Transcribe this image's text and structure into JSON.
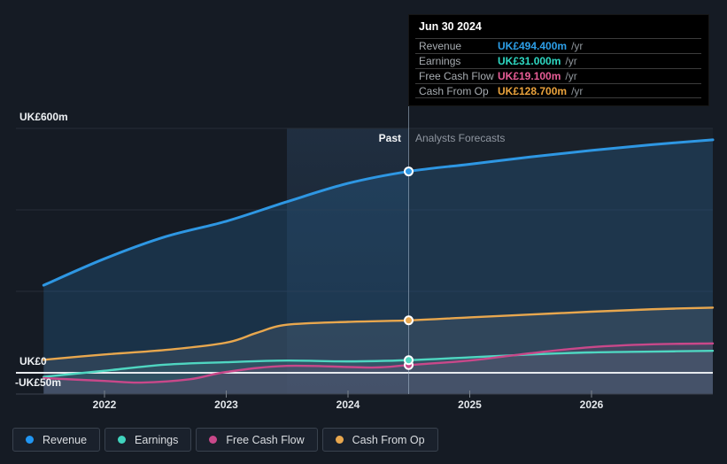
{
  "tooltip": {
    "date": "Jun 30 2024",
    "rows": [
      {
        "label": "Revenue",
        "value": "UK£494.400m",
        "unit": "/yr",
        "color": "#2d9fe8"
      },
      {
        "label": "Earnings",
        "value": "UK£31.000m",
        "unit": "/yr",
        "color": "#2ed9c3"
      },
      {
        "label": "Free Cash Flow",
        "value": "UK£19.100m",
        "unit": "/yr",
        "color": "#e85d97"
      },
      {
        "label": "Cash From Op",
        "value": "UK£128.700m",
        "unit": "/yr",
        "color": "#eba33c"
      }
    ]
  },
  "phases": {
    "past": "Past",
    "forecast": "Analysts Forecasts"
  },
  "axis": {
    "y_labels": [
      "UK£600m",
      "UK£0",
      "-UK£50m"
    ],
    "x_ticks": [
      "2022",
      "2023",
      "2024",
      "2025",
      "2026"
    ]
  },
  "legend": {
    "items": [
      {
        "label": "Revenue",
        "color": "#2196f3"
      },
      {
        "label": "Earnings",
        "color": "#40d4be"
      },
      {
        "label": "Free Cash Flow",
        "color": "#c9488a"
      },
      {
        "label": "Cash From Op",
        "color": "#e8a74e"
      }
    ]
  },
  "chart_data": {
    "type": "line",
    "title": "Past and forecast Revenue, Earnings, Free Cash Flow and Cash From Op",
    "unit": "UK£ millions per year",
    "x": "calendar year",
    "x_ticks": [
      2022,
      2023,
      2024,
      2025,
      2026
    ],
    "x_range": [
      2021.5,
      2027
    ],
    "ylim_m": [
      -50,
      600
    ],
    "y_gridlines_m": [
      600,
      400,
      200,
      0
    ],
    "grid": true,
    "legend_position": "bottom-left",
    "divider": {
      "year": 2024.5,
      "past_label": "Past",
      "forecast_label": "Analysts Forecasts"
    },
    "highlight_band": {
      "from_year": 2023.5,
      "to_year": 2024.5
    },
    "marker": {
      "date": "Jun 30 2024",
      "year": 2024.5,
      "values_m": {
        "Revenue": 494.4,
        "Earnings": 31.0,
        "Free Cash Flow": 19.1,
        "Cash From Op": 128.7
      }
    },
    "series": [
      {
        "name": "Revenue",
        "color": "#2e97e3",
        "fill": "rgba(44,118,180,0.25)",
        "line_width": 3,
        "points": [
          [
            2021.5,
            215
          ],
          [
            2022,
            280
          ],
          [
            2022.5,
            334
          ],
          [
            2023,
            372
          ],
          [
            2023.5,
            420
          ],
          [
            2024,
            465
          ],
          [
            2024.5,
            494.4
          ],
          [
            2025,
            512
          ],
          [
            2025.5,
            530
          ],
          [
            2026,
            546
          ],
          [
            2026.5,
            560
          ],
          [
            2027,
            572
          ]
        ]
      },
      {
        "name": "Earnings",
        "color": "#4fd6c1",
        "fill": "rgba(79,214,193,0.10)",
        "line_width": 2.4,
        "points": [
          [
            2021.5,
            -10
          ],
          [
            2022,
            5
          ],
          [
            2022.5,
            20
          ],
          [
            2023,
            26
          ],
          [
            2023.5,
            30
          ],
          [
            2024,
            28
          ],
          [
            2024.5,
            31
          ],
          [
            2025,
            38
          ],
          [
            2025.5,
            45
          ],
          [
            2026,
            50
          ],
          [
            2026.5,
            52
          ],
          [
            2027,
            54
          ]
        ]
      },
      {
        "name": "Free Cash Flow",
        "color": "#c9488a",
        "fill": "rgba(205,75,140,0.12)",
        "line_width": 2.4,
        "points": [
          [
            2021.5,
            -13
          ],
          [
            2022,
            -20
          ],
          [
            2022.3,
            -24
          ],
          [
            2022.7,
            -16
          ],
          [
            2023,
            2
          ],
          [
            2023.5,
            17
          ],
          [
            2024.2,
            13
          ],
          [
            2024.5,
            19.1
          ],
          [
            2025,
            30
          ],
          [
            2025.5,
            48
          ],
          [
            2026,
            63
          ],
          [
            2026.5,
            70
          ],
          [
            2027,
            72
          ]
        ]
      },
      {
        "name": "Cash From Op",
        "color": "#e8a74e",
        "fill": "rgba(215,220,225,0.10)",
        "line_width": 2.4,
        "points": [
          [
            2021.5,
            32
          ],
          [
            2022,
            45
          ],
          [
            2022.5,
            56
          ],
          [
            2023,
            74
          ],
          [
            2023.25,
            98
          ],
          [
            2023.5,
            118
          ],
          [
            2024,
            125
          ],
          [
            2024.5,
            128.7
          ],
          [
            2025,
            136
          ],
          [
            2025.5,
            143
          ],
          [
            2026,
            150
          ],
          [
            2026.5,
            156
          ],
          [
            2027,
            160
          ]
        ]
      }
    ]
  }
}
